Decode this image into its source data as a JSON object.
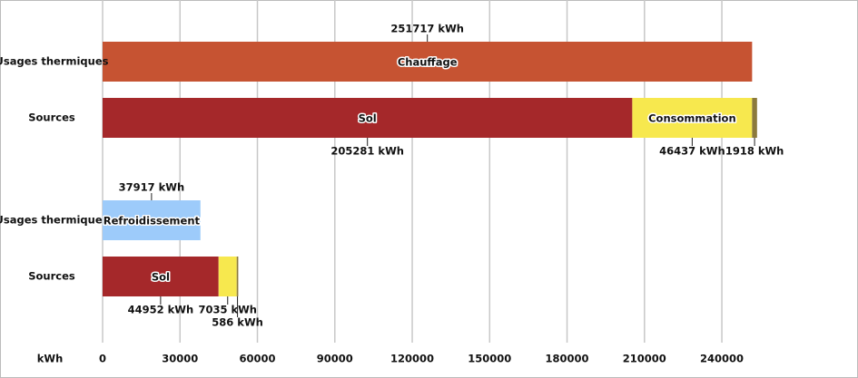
{
  "chart_data": {
    "type": "bar",
    "orientation": "horizontal",
    "stacked": true,
    "x_label": "kWh",
    "xlim": [
      0,
      291000
    ],
    "xticks": [
      0,
      30000,
      60000,
      90000,
      120000,
      150000,
      180000,
      210000,
      240000
    ],
    "grid": true,
    "groups": [
      {
        "rows": [
          {
            "label": "Usages thermiques",
            "segments": [
              {
                "name": "Chauffage",
                "color": "#c65332",
                "value": 251717,
                "value_label": "251717 kWh"
              }
            ]
          },
          {
            "label": "Sources",
            "segments": [
              {
                "name": "Sol",
                "color": "#a5282a",
                "value": 205281,
                "value_label": "205281 kWh"
              },
              {
                "name": "Consommation",
                "color": "#f7e84e",
                "value": 46437,
                "value_label": "46437 kWh"
              },
              {
                "color": "#8c7a3c",
                "value": 1918,
                "value_label": "1918 kWh"
              }
            ]
          }
        ]
      },
      {
        "rows": [
          {
            "label": "Usages thermiques",
            "segments": [
              {
                "name": "Refroidissement",
                "color": "#9dcbfa",
                "value": 37917,
                "value_label": "37917 kWh"
              }
            ]
          },
          {
            "label": "Sources",
            "segments": [
              {
                "name": "Sol",
                "color": "#a5282a",
                "value": 44952,
                "value_label": "44952 kWh"
              },
              {
                "color": "#f7e84e",
                "value": 7035,
                "value_label": "7035 kWh"
              },
              {
                "color": "#8c7a3c",
                "value": 586,
                "value_label": "586 kWh"
              }
            ]
          }
        ]
      }
    ]
  }
}
